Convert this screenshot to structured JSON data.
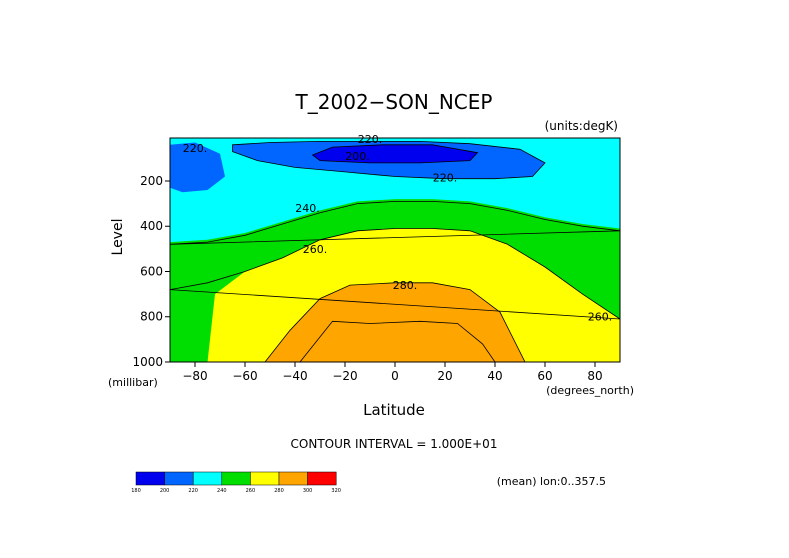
{
  "chart_data": {
    "type": "contour",
    "title": "T_2002−SON_NCEP",
    "units_label": "(units:degK)",
    "xlabel": "Latitude",
    "ylabel": "Level",
    "xunits": "(degrees_north)",
    "yunits": "(millibar)",
    "xlim": [
      -90,
      90
    ],
    "ylim": [
      1000,
      10
    ],
    "x_ticks": [
      -80,
      -60,
      -40,
      -20,
      0,
      20,
      40,
      60,
      80
    ],
    "x_tick_labels": [
      "−80",
      "−60",
      "−40",
      "−20",
      "0",
      "20",
      "40",
      "60",
      "80"
    ],
    "y_ticks": [
      200,
      400,
      600,
      800,
      1000
    ],
    "y_tick_labels": [
      "200",
      "400",
      "600",
      "800",
      "1000"
    ],
    "contour_interval_text": "CONTOUR INTERVAL = 1.000E+01",
    "mean_text": "(mean) lon:0..357.5",
    "contour_labels": [
      {
        "text": "220.",
        "lat": -80,
        "level": 55
      },
      {
        "text": "220.",
        "lat": -10,
        "level": 15
      },
      {
        "text": "200.",
        "lat": -15,
        "level": 90
      },
      {
        "text": "220.",
        "lat": 20,
        "level": 185
      },
      {
        "text": "240.",
        "lat": -35,
        "level": 320
      },
      {
        "text": "260.",
        "lat": -32,
        "level": 500
      },
      {
        "text": "280.",
        "lat": 4,
        "level": 660
      },
      {
        "text": "260.",
        "lat": 82,
        "level": 800
      }
    ],
    "isolines": [
      {
        "value": 200,
        "points": [
          [
            -33,
            85
          ],
          [
            -25,
            50
          ],
          [
            -5,
            40
          ],
          [
            15,
            40
          ],
          [
            33,
            75
          ],
          [
            30,
            110
          ],
          [
            10,
            120
          ],
          [
            -10,
            120
          ],
          [
            -30,
            110
          ]
        ]
      },
      {
        "value": 220,
        "points": [
          [
            -65,
            40
          ],
          [
            -50,
            30
          ],
          [
            -30,
            25
          ],
          [
            -10,
            25
          ],
          [
            10,
            25
          ],
          [
            30,
            35
          ],
          [
            50,
            60
          ],
          [
            60,
            120
          ],
          [
            55,
            180
          ],
          [
            40,
            190
          ],
          [
            20,
            190
          ],
          [
            0,
            180
          ],
          [
            -20,
            160
          ],
          [
            -40,
            140
          ],
          [
            -55,
            110
          ],
          [
            -65,
            70
          ]
        ]
      },
      {
        "value": 240,
        "points": [
          [
            -90,
            480
          ],
          [
            -75,
            470
          ],
          [
            -60,
            440
          ],
          [
            -45,
            390
          ],
          [
            -30,
            340
          ],
          [
            -15,
            300
          ],
          [
            0,
            290
          ],
          [
            15,
            290
          ],
          [
            30,
            300
          ],
          [
            45,
            330
          ],
          [
            60,
            370
          ],
          [
            75,
            400
          ],
          [
            90,
            420
          ]
        ]
      },
      {
        "value": 260,
        "points": [
          [
            -90,
            680
          ],
          [
            -75,
            650
          ],
          [
            -60,
            600
          ],
          [
            -45,
            540
          ],
          [
            -30,
            460
          ],
          [
            -15,
            420
          ],
          [
            0,
            410
          ],
          [
            15,
            410
          ],
          [
            30,
            420
          ],
          [
            45,
            480
          ],
          [
            60,
            580
          ],
          [
            75,
            700
          ],
          [
            90,
            810
          ]
        ]
      },
      {
        "value": 280,
        "points": [
          [
            -52,
            1000
          ],
          [
            -42,
            860
          ],
          [
            -30,
            720
          ],
          [
            -18,
            660
          ],
          [
            0,
            650
          ],
          [
            15,
            650
          ],
          [
            30,
            680
          ],
          [
            42,
            780
          ],
          [
            52,
            1000
          ]
        ]
      },
      {
        "value": 290,
        "points": [
          [
            -38,
            1000
          ],
          [
            -25,
            820
          ],
          [
            -10,
            830
          ],
          [
            10,
            820
          ],
          [
            25,
            830
          ],
          [
            35,
            920
          ],
          [
            40,
            1000
          ]
        ]
      }
    ],
    "regions": [
      {
        "value": 240,
        "color": "#00dd00",
        "points": [
          [
            -90,
            1000
          ],
          [
            -90,
            470
          ],
          [
            -75,
            460
          ],
          [
            -60,
            430
          ],
          [
            -45,
            380
          ],
          [
            -30,
            330
          ],
          [
            -15,
            290
          ],
          [
            0,
            280
          ],
          [
            15,
            280
          ],
          [
            30,
            290
          ],
          [
            45,
            320
          ],
          [
            60,
            360
          ],
          [
            75,
            390
          ],
          [
            90,
            410
          ],
          [
            90,
            1000
          ]
        ]
      },
      {
        "value": 260,
        "color": "#ffff00",
        "points": [
          [
            -75,
            1000
          ],
          [
            -72,
            700
          ],
          [
            -60,
            600
          ],
          [
            -45,
            540
          ],
          [
            -30,
            460
          ],
          [
            -15,
            420
          ],
          [
            0,
            410
          ],
          [
            15,
            410
          ],
          [
            30,
            420
          ],
          [
            45,
            480
          ],
          [
            60,
            580
          ],
          [
            75,
            700
          ],
          [
            90,
            810
          ],
          [
            90,
            1000
          ]
        ]
      },
      {
        "value": 280,
        "color": "#ffa500",
        "points": [
          [
            -52,
            1000
          ],
          [
            -42,
            860
          ],
          [
            -30,
            720
          ],
          [
            -18,
            660
          ],
          [
            0,
            650
          ],
          [
            15,
            650
          ],
          [
            30,
            680
          ],
          [
            42,
            780
          ],
          [
            52,
            1000
          ]
        ]
      },
      {
        "value": 200,
        "color": "#0066ff",
        "points": [
          [
            -65,
            40
          ],
          [
            -50,
            30
          ],
          [
            -30,
            25
          ],
          [
            -10,
            25
          ],
          [
            10,
            25
          ],
          [
            30,
            35
          ],
          [
            50,
            60
          ],
          [
            60,
            120
          ],
          [
            55,
            180
          ],
          [
            40,
            190
          ],
          [
            20,
            190
          ],
          [
            0,
            180
          ],
          [
            -20,
            160
          ],
          [
            -40,
            140
          ],
          [
            -55,
            110
          ],
          [
            -65,
            70
          ]
        ]
      },
      {
        "value": 200,
        "color": "#0066ff",
        "points": [
          [
            -90,
            230
          ],
          [
            -90,
            40
          ],
          [
            -80,
            30
          ],
          [
            -70,
            80
          ],
          [
            -68,
            180
          ],
          [
            -75,
            240
          ],
          [
            -85,
            250
          ]
        ]
      },
      {
        "value": 180,
        "color": "#0000ee",
        "points": [
          [
            -33,
            85
          ],
          [
            -25,
            50
          ],
          [
            -5,
            40
          ],
          [
            15,
            40
          ],
          [
            33,
            75
          ],
          [
            30,
            110
          ],
          [
            10,
            120
          ],
          [
            -10,
            120
          ],
          [
            -30,
            110
          ]
        ]
      },
      {
        "value": 220,
        "color": "#00ffff",
        "points": [
          [
            62,
            150
          ],
          [
            70,
            130
          ],
          [
            78,
            150
          ],
          [
            72,
            180
          ],
          [
            64,
            175
          ]
        ]
      }
    ],
    "colorbar": {
      "colors": [
        "#0000ee",
        "#0066ff",
        "#00ffff",
        "#00dd00",
        "#ffff00",
        "#ffa500",
        "#ff0000"
      ],
      "labels": [
        "180",
        "200",
        "220",
        "240",
        "260",
        "280",
        "300",
        "320"
      ]
    },
    "background_color": "#00ffff"
  }
}
